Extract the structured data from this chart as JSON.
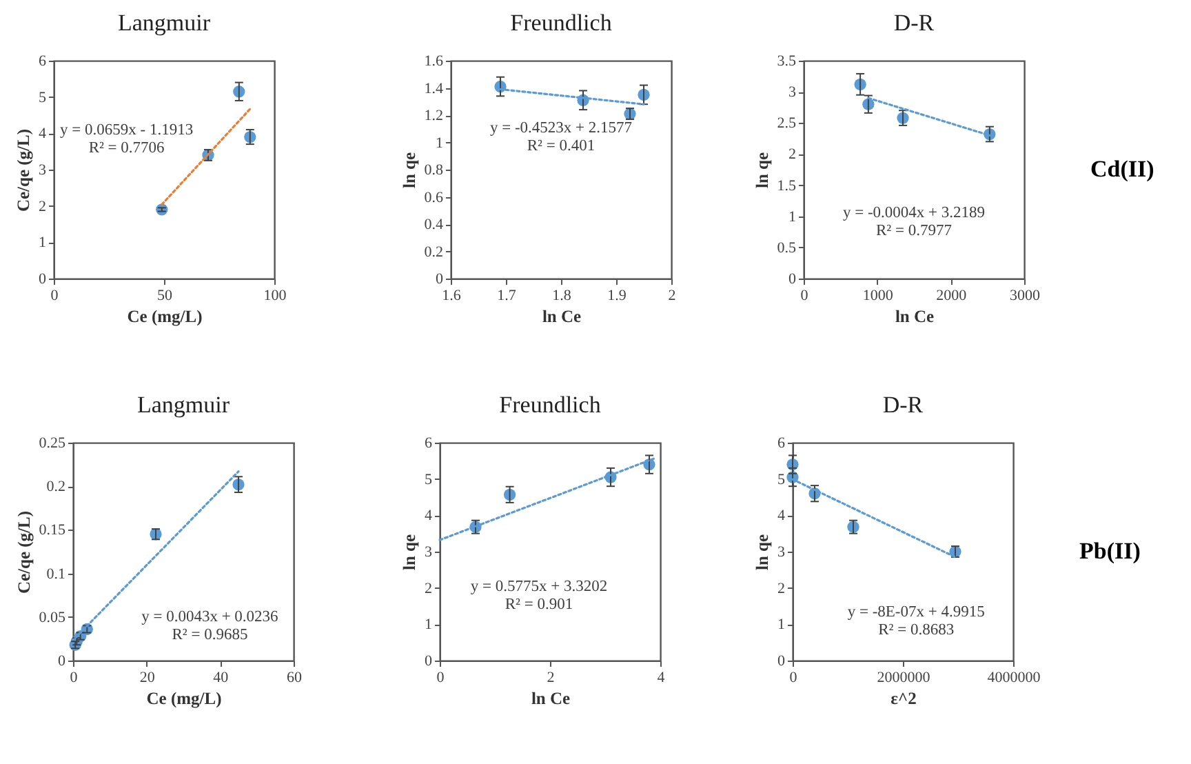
{
  "chart_data": [
    {
      "type": "scatter",
      "title": "Langmuir",
      "xlabel": "Ce (mg/L)",
      "ylabel": "Ce/qe (g/L)",
      "xlim": [
        0,
        100
      ],
      "xticks": [
        0,
        50,
        100
      ],
      "ylim": [
        0,
        6
      ],
      "yticks": [
        0,
        1,
        2,
        3,
        4,
        5,
        6
      ],
      "grid": false,
      "marker": "circle",
      "annotations": [
        "y = 0.0659x - 1.1913",
        "R² = 0.7706"
      ],
      "series": [
        {
          "color": "#5b9bd5",
          "x": [
            49,
            70,
            84,
            89
          ],
          "values": [
            1.9,
            3.4,
            5.15,
            3.9
          ],
          "errors": [
            0.05,
            0.15,
            0.25,
            0.2
          ]
        },
        {
          "type": "line",
          "color": "#ed7d31",
          "line_style": "dotted",
          "marker": "none",
          "x": [
            49,
            89
          ],
          "values": [
            2.04,
            4.67
          ]
        }
      ]
    },
    {
      "type": "scatter",
      "title": "Freundlich",
      "xlabel": "ln Ce",
      "ylabel": "ln qe",
      "xlim": [
        1.6,
        2
      ],
      "xticks": [
        1.6,
        1.7,
        1.8,
        1.9,
        2
      ],
      "ylim": [
        0,
        1.6
      ],
      "yticks": [
        0,
        0.2,
        0.4,
        0.6,
        0.8,
        1,
        1.2,
        1.4,
        1.6
      ],
      "grid": false,
      "marker": "circle",
      "annotations": [
        "y = -0.4523x + 2.1577",
        "R² = 0.401"
      ],
      "series": [
        {
          "color": "#5b9bd5",
          "x": [
            1.69,
            1.84,
            1.925,
            1.95
          ],
          "values": [
            1.41,
            1.31,
            1.21,
            1.35
          ],
          "errors": [
            0.07,
            0.07,
            0.04,
            0.07
          ]
        },
        {
          "type": "line",
          "color": "#5b9bd5",
          "line_style": "dotted",
          "marker": "none",
          "x": [
            1.69,
            1.95
          ],
          "values": [
            1.39,
            1.28
          ]
        }
      ]
    },
    {
      "type": "scatter",
      "title": "D-R",
      "xlabel": "ln Ce",
      "ylabel": "ln qe",
      "xlim": [
        0,
        3000
      ],
      "xticks": [
        0,
        1000,
        2000,
        3000
      ],
      "ylim": [
        0,
        3.5
      ],
      "yticks": [
        0,
        0.5,
        1,
        1.5,
        2,
        2.5,
        3,
        3.5
      ],
      "grid": false,
      "marker": "circle",
      "annotations": [
        "y = -0.0004x + 3.2189",
        "R² = 0.7977",
        "Cd(II)"
      ],
      "series": [
        {
          "color": "#5b9bd5",
          "x": [
            770,
            880,
            1350,
            2530
          ],
          "values": [
            3.12,
            2.8,
            2.58,
            2.32
          ],
          "errors": [
            0.17,
            0.14,
            0.12,
            0.12
          ]
        },
        {
          "type": "line",
          "color": "#5b9bd5",
          "line_style": "dotted",
          "marker": "none",
          "x": [
            880,
            2530
          ],
          "values": [
            2.9,
            2.3
          ]
        }
      ]
    },
    {
      "type": "scatter",
      "title": "Langmuir",
      "xlabel": "Ce (mg/L)",
      "ylabel": "Ce/qe (g/L)",
      "xlim": [
        0,
        60
      ],
      "xticks": [
        0,
        20,
        40,
        60
      ],
      "ylim": [
        0,
        0.25
      ],
      "yticks": [
        0,
        0.05,
        0.1,
        0.15,
        0.2,
        0.25
      ],
      "grid": false,
      "marker": "circle",
      "annotations": [
        "y = 0.0043x + 0.0236",
        "R² = 0.9685"
      ],
      "series": [
        {
          "color": "#5b9bd5",
          "x": [
            0.6,
            1.0,
            2.0,
            3.8,
            22.5,
            45
          ],
          "values": [
            0.018,
            0.022,
            0.028,
            0.036,
            0.145,
            0.202
          ],
          "errors": [
            0.004,
            0.004,
            0.004,
            0.004,
            0.006,
            0.009
          ]
        },
        {
          "type": "line",
          "color": "#5b9bd5",
          "line_style": "dotted",
          "marker": "none",
          "x": [
            0.6,
            45
          ],
          "values": [
            0.026,
            0.217
          ]
        }
      ]
    },
    {
      "type": "scatter",
      "title": "Freundlich",
      "xlabel": "ln Ce",
      "ylabel": "ln qe",
      "xlim": [
        0,
        4
      ],
      "xticks": [
        0,
        2,
        4
      ],
      "ylim": [
        0,
        6
      ],
      "yticks": [
        0,
        1,
        2,
        3,
        4,
        5,
        6
      ],
      "grid": false,
      "marker": "circle",
      "annotations": [
        "y = 0.5775x + 3.3202",
        "R² = 0.901"
      ],
      "series": [
        {
          "color": "#5b9bd5",
          "x": [
            0.65,
            1.27,
            3.1,
            3.8
          ],
          "values": [
            3.68,
            4.57,
            5.05,
            5.4
          ],
          "errors": [
            0.18,
            0.22,
            0.25,
            0.25
          ]
        },
        {
          "type": "line",
          "color": "#5b9bd5",
          "line_style": "dotted",
          "marker": "none",
          "x": [
            0,
            3.9
          ],
          "values": [
            3.32,
            5.57
          ]
        }
      ]
    },
    {
      "type": "scatter",
      "title": "D-R",
      "xlabel": "ε^2",
      "ylabel": "ln qe",
      "xlim": [
        0,
        4000000
      ],
      "xticks": [
        0,
        2000000,
        4000000
      ],
      "ylim": [
        0,
        6
      ],
      "yticks": [
        0,
        1,
        2,
        3,
        4,
        5,
        6
      ],
      "grid": false,
      "marker": "circle",
      "annotations": [
        "y = -8E-07x + 4.9915",
        "R² = 0.8683",
        "Pb(II)"
      ],
      "series": [
        {
          "color": "#5b9bd5",
          "x": [
            0,
            0,
            400000,
            1100000,
            2950000
          ],
          "values": [
            5.4,
            5.05,
            4.6,
            3.68,
            3.0
          ],
          "errors": [
            0.25,
            0.25,
            0.22,
            0.18,
            0.15
          ]
        },
        {
          "type": "line",
          "color": "#5b9bd5",
          "line_style": "dotted",
          "marker": "none",
          "x": [
            0,
            2950000
          ],
          "values": [
            4.99,
            2.85
          ]
        }
      ]
    }
  ]
}
